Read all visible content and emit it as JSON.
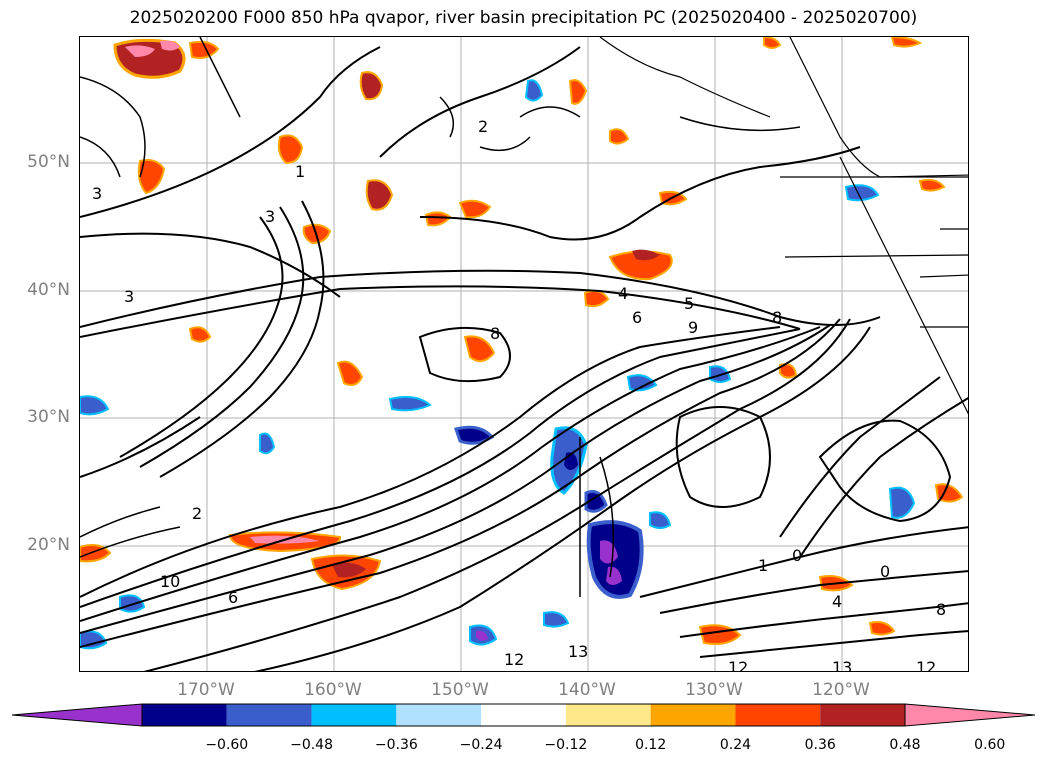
{
  "title": "2025020200 F000 850 hPa qvapor, river basin precipitation PC (2025020400 - 2025020700)",
  "lat_labels": [
    "50°N",
    "40°N",
    "30°N",
    "20°N"
  ],
  "lon_labels": [
    "170°W",
    "160°W",
    "150°W",
    "140°W",
    "130°W",
    "120°W"
  ],
  "colorbar": {
    "extend": "both",
    "tick_labels": [
      "−0.60",
      "−0.48",
      "−0.36",
      "−0.24",
      "−0.12",
      "0.12",
      "0.24",
      "0.36",
      "0.48",
      "0.60"
    ],
    "colors": [
      "#9932cc",
      "#00008b",
      "#3a5fcd",
      "#00bfff",
      "#b0e2ff",
      "#ffffff",
      "#ffe88a",
      "#ffa500",
      "#ff4500",
      "#b22222",
      "#ff88aa"
    ]
  },
  "contour_labels": [
    "1",
    "2",
    "3",
    "3",
    "3",
    "4",
    "5",
    "6",
    "8",
    "8",
    "9",
    "2",
    "0",
    "0",
    "1",
    "4",
    "6",
    "8",
    "10",
    "12",
    "13",
    "12",
    "13",
    "12"
  ]
}
